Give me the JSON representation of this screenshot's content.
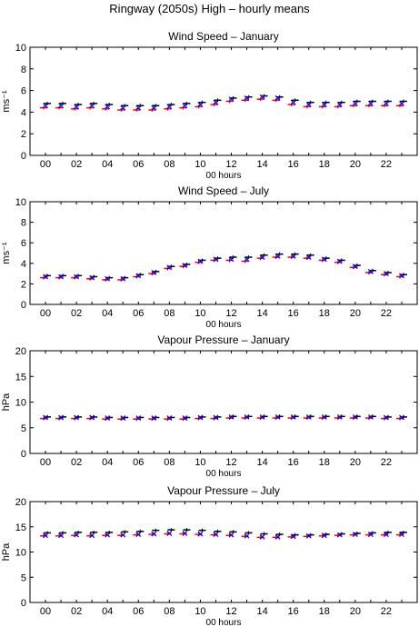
{
  "title": "Ringway (2050s) High – hourly means",
  "colors": {
    "black_series": "#000000",
    "red_series": "#ff0000",
    "blue_series": "#0000ff",
    "axis": "#000000"
  },
  "chart_data": [
    {
      "type": "scatter",
      "title": "Wind Speed – January",
      "xlabel": "00 hours",
      "ylabel": "ms⁻¹",
      "ylim": [
        0,
        10
      ],
      "yticks": [
        0,
        2,
        4,
        6,
        8,
        10
      ],
      "xlim": [
        -1,
        24
      ],
      "xtick_values": [
        0,
        2,
        4,
        6,
        8,
        10,
        12,
        14,
        16,
        18,
        20,
        22
      ],
      "xtick_labels": [
        "00",
        "02",
        "04",
        "06",
        "08",
        "10",
        "12",
        "14",
        "16",
        "18",
        "20",
        "22"
      ],
      "x": [
        0,
        1,
        2,
        3,
        4,
        5,
        6,
        7,
        8,
        9,
        10,
        11,
        12,
        13,
        14,
        15,
        16,
        17,
        18,
        19,
        20,
        21,
        22,
        23
      ],
      "black": [
        4.8,
        4.8,
        4.7,
        4.8,
        4.7,
        4.6,
        4.6,
        4.6,
        4.7,
        4.8,
        4.9,
        5.1,
        5.3,
        5.4,
        5.5,
        5.4,
        5.1,
        4.9,
        4.9,
        4.9,
        5.0,
        5.0,
        5.0,
        5.0
      ],
      "red": [
        4.4,
        4.4,
        4.3,
        4.4,
        4.3,
        4.2,
        4.2,
        4.2,
        4.3,
        4.4,
        4.5,
        4.7,
        5.0,
        5.1,
        5.2,
        5.1,
        4.7,
        4.5,
        4.5,
        4.5,
        4.6,
        4.6,
        4.6,
        4.6
      ],
      "blue": [
        4.6,
        4.6,
        4.5,
        4.6,
        4.5,
        4.4,
        4.4,
        4.4,
        4.5,
        4.6,
        4.7,
        4.9,
        5.2,
        5.3,
        5.4,
        5.3,
        4.9,
        4.7,
        4.7,
        4.7,
        4.8,
        4.8,
        4.8,
        4.8
      ]
    },
    {
      "type": "scatter",
      "title": "Wind Speed – July",
      "xlabel": "00 hours",
      "ylabel": "ms⁻¹",
      "ylim": [
        0,
        10
      ],
      "yticks": [
        0,
        2,
        4,
        6,
        8,
        10
      ],
      "xlim": [
        -1,
        24
      ],
      "xtick_values": [
        0,
        2,
        4,
        6,
        8,
        10,
        12,
        14,
        16,
        18,
        20,
        22
      ],
      "xtick_labels": [
        "00",
        "02",
        "04",
        "06",
        "08",
        "10",
        "12",
        "14",
        "16",
        "18",
        "20",
        "22"
      ],
      "x": [
        0,
        1,
        2,
        3,
        4,
        5,
        6,
        7,
        8,
        9,
        10,
        11,
        12,
        13,
        14,
        15,
        16,
        17,
        18,
        19,
        20,
        21,
        22,
        23
      ],
      "black": [
        2.8,
        2.8,
        2.8,
        2.7,
        2.6,
        2.6,
        2.9,
        3.2,
        3.7,
        3.9,
        4.3,
        4.5,
        4.6,
        4.6,
        4.8,
        4.9,
        4.9,
        4.8,
        4.5,
        4.3,
        3.8,
        3.3,
        3.1,
        2.9
      ],
      "red": [
        2.6,
        2.6,
        2.6,
        2.5,
        2.4,
        2.4,
        2.7,
        3.0,
        3.5,
        3.7,
        4.1,
        4.3,
        4.3,
        4.2,
        4.5,
        4.6,
        4.6,
        4.5,
        4.3,
        4.1,
        3.6,
        3.1,
        2.9,
        2.7
      ],
      "blue": [
        2.7,
        2.7,
        2.7,
        2.6,
        2.5,
        2.5,
        2.8,
        3.1,
        3.6,
        3.8,
        4.2,
        4.4,
        4.4,
        4.4,
        4.6,
        4.7,
        4.7,
        4.6,
        4.4,
        4.2,
        3.7,
        3.2,
        3.0,
        2.8
      ]
    },
    {
      "type": "scatter",
      "title": "Vapour Pressure – January",
      "xlabel": "00 hours",
      "ylabel": "hPa",
      "ylim": [
        0,
        20
      ],
      "yticks": [
        0,
        5,
        10,
        15,
        20
      ],
      "xlim": [
        -1,
        24
      ],
      "xtick_values": [
        0,
        2,
        4,
        6,
        8,
        10,
        12,
        14,
        16,
        18,
        20,
        22
      ],
      "xtick_labels": [
        "00",
        "02",
        "04",
        "06",
        "08",
        "10",
        "12",
        "14",
        "16",
        "18",
        "20",
        "22"
      ],
      "x": [
        0,
        1,
        2,
        3,
        4,
        5,
        6,
        7,
        8,
        9,
        10,
        11,
        12,
        13,
        14,
        15,
        16,
        17,
        18,
        19,
        20,
        21,
        22,
        23
      ],
      "black": [
        7.1,
        7.1,
        7.1,
        7.1,
        7.0,
        7.0,
        7.0,
        7.0,
        7.0,
        7.0,
        7.1,
        7.1,
        7.2,
        7.2,
        7.2,
        7.2,
        7.2,
        7.2,
        7.2,
        7.2,
        7.2,
        7.2,
        7.1,
        7.1
      ],
      "red": [
        6.8,
        6.8,
        6.8,
        6.8,
        6.7,
        6.7,
        6.7,
        6.7,
        6.7,
        6.7,
        6.8,
        6.8,
        6.9,
        6.9,
        6.9,
        6.9,
        6.9,
        6.9,
        6.9,
        6.9,
        6.9,
        6.9,
        6.8,
        6.8
      ],
      "blue": [
        7.0,
        7.0,
        7.0,
        7.0,
        6.9,
        6.9,
        6.9,
        6.9,
        6.9,
        6.9,
        7.0,
        7.0,
        7.1,
        7.1,
        7.1,
        7.1,
        7.1,
        7.1,
        7.1,
        7.1,
        7.1,
        7.1,
        7.0,
        7.0
      ]
    },
    {
      "type": "scatter",
      "title": "Vapour Pressure – July",
      "xlabel": "00 hours",
      "ylabel": "hPa",
      "ylim": [
        0,
        20
      ],
      "yticks": [
        0,
        5,
        10,
        15,
        20
      ],
      "xlim": [
        -1,
        24
      ],
      "xtick_values": [
        0,
        2,
        4,
        6,
        8,
        10,
        12,
        14,
        16,
        18,
        20,
        22
      ],
      "xtick_labels": [
        "00",
        "02",
        "04",
        "06",
        "08",
        "10",
        "12",
        "14",
        "16",
        "18",
        "20",
        "22"
      ],
      "x": [
        0,
        1,
        2,
        3,
        4,
        5,
        6,
        7,
        8,
        9,
        10,
        11,
        12,
        13,
        14,
        15,
        16,
        17,
        18,
        19,
        20,
        21,
        22,
        23
      ],
      "black": [
        13.8,
        13.8,
        13.9,
        13.9,
        13.9,
        14.0,
        14.1,
        14.3,
        14.4,
        14.4,
        14.3,
        14.1,
        14.0,
        13.8,
        13.6,
        13.5,
        13.4,
        13.4,
        13.5,
        13.6,
        13.7,
        13.8,
        13.9,
        13.9
      ],
      "red": [
        13.2,
        13.2,
        13.3,
        13.2,
        13.3,
        13.3,
        13.4,
        13.5,
        13.6,
        13.6,
        13.5,
        13.4,
        13.3,
        13.1,
        12.9,
        12.9,
        13.0,
        13.1,
        13.2,
        13.3,
        13.4,
        13.4,
        13.4,
        13.4
      ],
      "blue": [
        13.3,
        13.3,
        13.4,
        13.3,
        13.4,
        13.4,
        13.5,
        13.6,
        13.7,
        13.7,
        13.6,
        13.5,
        13.4,
        13.2,
        13.0,
        13.0,
        13.1,
        13.2,
        13.3,
        13.4,
        13.5,
        13.5,
        13.5,
        13.5
      ]
    }
  ]
}
